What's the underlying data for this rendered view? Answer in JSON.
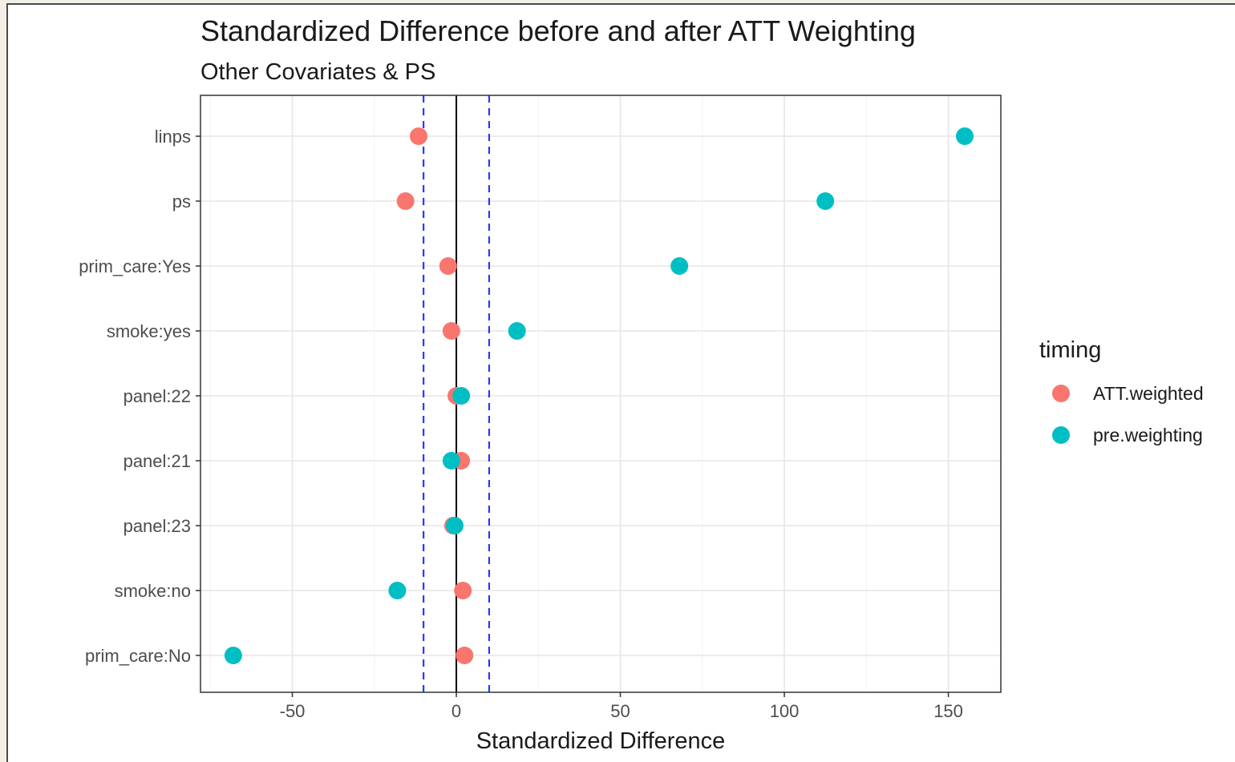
{
  "chart_data": {
    "type": "scatter",
    "title": "Standardized Difference before and after ATT Weighting",
    "subtitle": "Other Covariates & PS",
    "xlabel": "Standardized Difference",
    "ylabel": "",
    "xlim": [
      -78,
      166
    ],
    "x_ticks": [
      -50,
      0,
      50,
      100,
      150
    ],
    "x_tick_labels": [
      "-50",
      "0",
      "50",
      "100",
      "150"
    ],
    "categories": [
      "linps",
      "ps",
      "prim_care:Yes",
      "smoke:yes",
      "panel:22",
      "panel:21",
      "panel:23",
      "smoke:no",
      "prim_care:No"
    ],
    "reference_lines": {
      "zero": 0,
      "threshold_low": -10,
      "threshold_high": 10
    },
    "grid": true,
    "legend": {
      "title": "timing",
      "placement": "right"
    },
    "series": [
      {
        "name": "ATT.weighted",
        "color": "#F8766D",
        "values": [
          -11.5,
          -15.5,
          -2.5,
          -1.5,
          0,
          1.5,
          -1,
          2,
          2.5
        ]
      },
      {
        "name": "pre.weighting",
        "color": "#00BFC4",
        "values": [
          155,
          112.5,
          68,
          18.5,
          1.5,
          -1.5,
          -0.5,
          -18,
          -68
        ]
      }
    ]
  }
}
